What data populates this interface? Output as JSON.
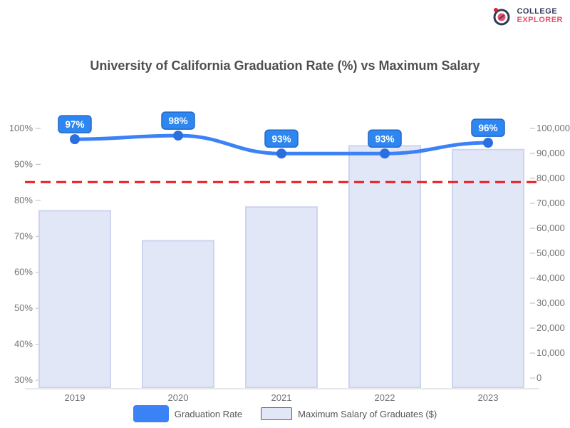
{
  "logo": {
    "line1": "COLLEGE",
    "line2": "EXPLORER",
    "ring_color": "#2e3a59",
    "accent_color": "#e8506a"
  },
  "chart_data": {
    "type": "bar+line combo",
    "title": "University of California Graduation Rate (%) vs Maximum Salary",
    "categories": [
      "2019",
      "2020",
      "2021",
      "2022",
      "2023"
    ],
    "series": [
      {
        "name": "Graduation Rate",
        "type": "line",
        "axis": "left",
        "values": [
          97,
          98,
          93,
          93,
          96
        ],
        "point_labels": [
          "97%",
          "98%",
          "93%",
          "93%",
          "96%"
        ],
        "line_color": "#3b82f6",
        "marker_color": "#2a6ee0",
        "badge_fill": "#2e87f0",
        "badge_border": "#2268c8",
        "badge_text_color": "#ffffff"
      },
      {
        "name": "Maximum Salary of Graduates ($)",
        "type": "bar",
        "axis": "right",
        "values": [
          67000,
          55000,
          68500,
          93000,
          91500
        ],
        "bar_fill": "#e2e7f8",
        "bar_border": "#ccd4ee"
      }
    ],
    "left_axis": {
      "min": 30,
      "max": 100,
      "step": 10,
      "unit": "%",
      "tick_labels": [
        "100%",
        "90%",
        "80%",
        "70%",
        "60%",
        "50%",
        "40%",
        "30%"
      ]
    },
    "right_axis": {
      "min": 0,
      "max": 100000,
      "step": 10000,
      "tick_labels": [
        "100,000",
        "90,000",
        "80,000",
        "70,000",
        "60,000",
        "50,000",
        "40,000",
        "30,000",
        "20,000",
        "10,000",
        "0"
      ]
    },
    "reference_line": {
      "value": 78500,
      "color": "#ec1c24",
      "style": "dashed"
    },
    "grid": false,
    "legend_position": "bottom",
    "axis_text_color": "#737373"
  },
  "legend": {
    "items": [
      {
        "label": "Graduation Rate",
        "swatch_color": "#3b82f6"
      },
      {
        "label": "Maximum Salary of Graduates ($)",
        "swatch_color": "#e2e7f8"
      }
    ]
  }
}
